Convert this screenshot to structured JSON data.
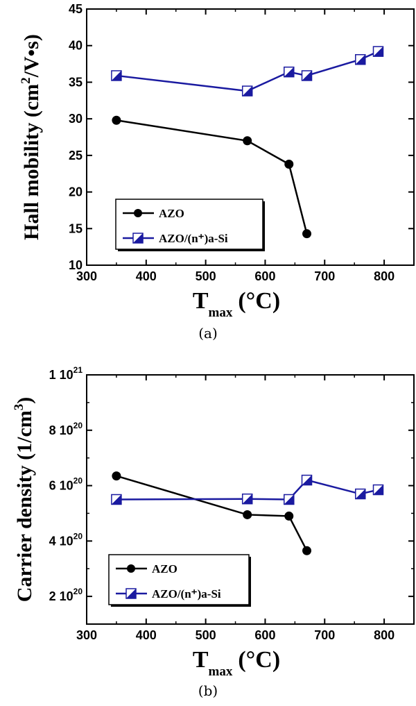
{
  "chart_data": [
    {
      "type": "line",
      "caption": "(a)",
      "ylabel_text": "Hall mobility (cm",
      "ylabel_sup": "2",
      "ylabel_tail": "/V•s)",
      "xlabel_main": "T",
      "xlabel_sub": "max",
      "xlabel_unit": "(°C)",
      "xlim": [
        300,
        850
      ],
      "ylim": [
        10,
        45
      ],
      "xticks": [
        300,
        400,
        500,
        600,
        700,
        800
      ],
      "yticks": [
        10,
        15,
        20,
        25,
        30,
        35,
        40,
        45
      ],
      "ytick_labels": [
        "10",
        "15",
        "20",
        "25",
        "30",
        "35",
        "40",
        "45"
      ],
      "legend_position": "lower-left",
      "series": [
        {
          "name": "AZO",
          "marker": "filled-circle",
          "color": "#000000",
          "x": [
            350,
            570,
            640,
            670
          ],
          "y": [
            29.8,
            27.0,
            23.8,
            14.3
          ]
        },
        {
          "name": "AZO/(n⁺)a-Si",
          "marker": "half-filled-square",
          "color": "#1a1aa0",
          "x": [
            350,
            570,
            640,
            670,
            760,
            790
          ],
          "y": [
            35.9,
            33.8,
            36.4,
            35.9,
            38.1,
            39.2
          ]
        }
      ]
    },
    {
      "type": "line",
      "caption": "(b)",
      "ylabel_text": "Carrier density (1/cm",
      "ylabel_sup": "3",
      "ylabel_tail": ")",
      "xlabel_main": "T",
      "xlabel_sub": "max",
      "xlabel_unit": "(°C)",
      "xlim": [
        300,
        850
      ],
      "ylim": [
        1e+20,
        1e+21
      ],
      "xticks": [
        300,
        400,
        500,
        600,
        700,
        800
      ],
      "yticks": [
        2e+20,
        4e+20,
        6e+20,
        8e+20,
        1e+21
      ],
      "ytick_labels": [
        {
          "mant": "2 10",
          "exp": "20"
        },
        {
          "mant": "4 10",
          "exp": "20"
        },
        {
          "mant": "6 10",
          "exp": "20"
        },
        {
          "mant": "8 10",
          "exp": "20"
        },
        {
          "mant": "1 10",
          "exp": "21"
        }
      ],
      "legend_position": "lower-left",
      "series": [
        {
          "name": "AZO",
          "marker": "filled-circle",
          "color": "#000000",
          "x": [
            350,
            570,
            640,
            670
          ],
          "y": [
            6.35e+20,
            4.95e+20,
            4.9e+20,
            3.65e+20
          ]
        },
        {
          "name": "AZO/(n⁺)a-Si",
          "marker": "half-filled-square",
          "color": "#1a1aa0",
          "x": [
            350,
            570,
            640,
            670,
            760,
            790
          ],
          "y": [
            5.5e+20,
            5.52e+20,
            5.5e+20,
            6.2e+20,
            5.7e+20,
            5.85e+20
          ]
        }
      ]
    }
  ]
}
